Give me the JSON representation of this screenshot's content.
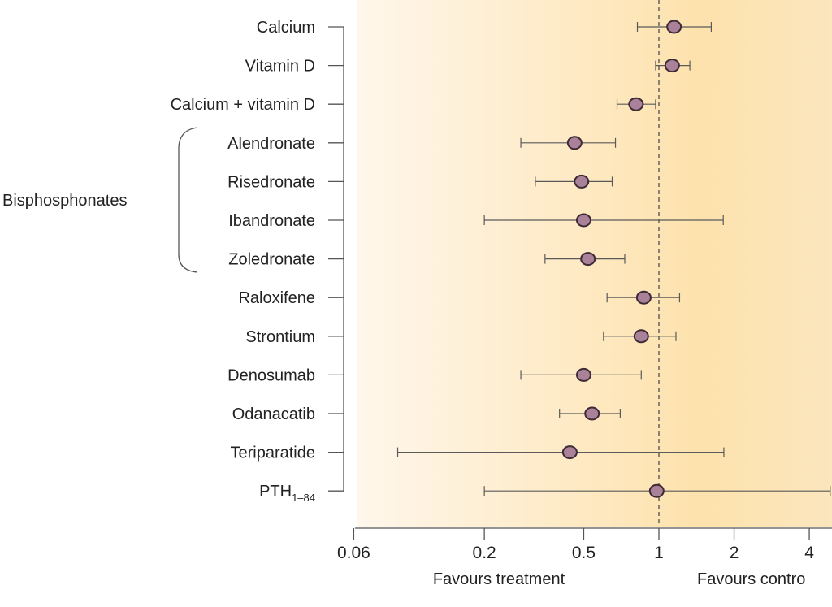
{
  "chart_data": {
    "type": "forest",
    "x_scale": "log",
    "xlim": [
      0.06,
      5
    ],
    "x_ticks": [
      0.06,
      0.2,
      0.5,
      1,
      2,
      4
    ],
    "x_tick_labels": [
      "0.06",
      "0.2",
      "0.5",
      "1",
      "2",
      "4"
    ],
    "reference_line": 1,
    "direction_labels": {
      "left": "Favours treatment",
      "right": "Favours contro"
    },
    "group": {
      "label": "Bisphosphonates",
      "from_index": 3,
      "to_index": 6
    },
    "rows": [
      {
        "label": "Calcium",
        "estimate": 1.15,
        "lower": 0.82,
        "upper": 1.62
      },
      {
        "label": "Vitamin D",
        "estimate": 1.13,
        "lower": 0.97,
        "upper": 1.33
      },
      {
        "label": "Calcium + vitamin D",
        "estimate": 0.81,
        "lower": 0.68,
        "upper": 0.97
      },
      {
        "label": "Alendronate",
        "estimate": 0.46,
        "lower": 0.28,
        "upper": 0.67
      },
      {
        "label": "Risedronate",
        "estimate": 0.49,
        "lower": 0.32,
        "upper": 0.65
      },
      {
        "label": "Ibandronate",
        "estimate": 0.5,
        "lower": 0.2,
        "upper": 1.81
      },
      {
        "label": "Zoledronate",
        "estimate": 0.52,
        "lower": 0.35,
        "upper": 0.73
      },
      {
        "label": "Raloxifene",
        "estimate": 0.87,
        "lower": 0.62,
        "upper": 1.21
      },
      {
        "label": "Strontium",
        "estimate": 0.85,
        "lower": 0.6,
        "upper": 1.17
      },
      {
        "label": "Denosumab",
        "estimate": 0.5,
        "lower": 0.28,
        "upper": 0.85
      },
      {
        "label": "Odanacatib",
        "estimate": 0.54,
        "lower": 0.4,
        "upper": 0.7
      },
      {
        "label": "Teriparatide",
        "estimate": 0.44,
        "lower": 0.09,
        "upper": 1.82
      },
      {
        "label": "PTH",
        "label_subscript": "1–84",
        "estimate": 0.98,
        "lower": 0.2,
        "upper": 4.85
      }
    ],
    "colors": {
      "marker_fill": "#a98199",
      "marker_stroke": "#3d2a35",
      "ci_line": "#5a5a5a",
      "band_center": "#fde2ad",
      "band_edge": "#fff7ec",
      "axis": "#555555",
      "text": "#222222"
    }
  }
}
